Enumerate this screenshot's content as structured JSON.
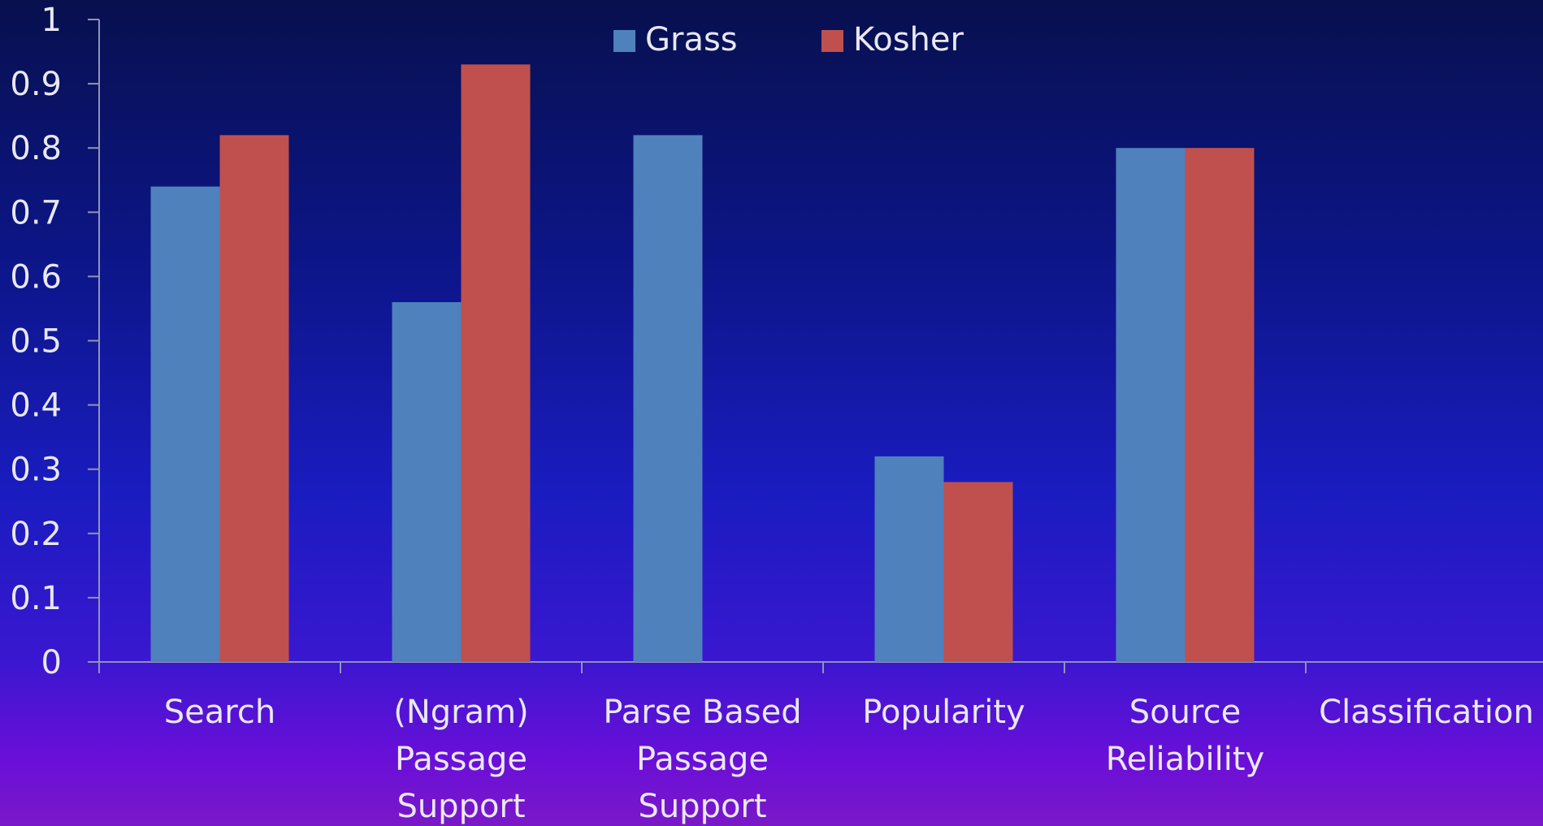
{
  "chart_data": {
    "type": "bar",
    "categories": [
      [
        "Search"
      ],
      [
        "(Ngram)",
        "Passage",
        "Support"
      ],
      [
        "Parse Based",
        "Passage",
        "Support"
      ],
      [
        "Popularity"
      ],
      [
        "Source",
        "Reliability"
      ],
      [
        "Classification"
      ]
    ],
    "series": [
      {
        "name": "Grass",
        "color": "#4f81bd",
        "values": [
          0.74,
          0.56,
          0.82,
          0.32,
          0.8,
          null
        ]
      },
      {
        "name": "Kosher",
        "color": "#c0504d",
        "values": [
          0.82,
          0.93,
          null,
          0.28,
          0.8,
          null
        ]
      }
    ],
    "ylim": [
      0,
      1
    ],
    "yticks": [
      "0",
      "0.1",
      "0.2",
      "0.3",
      "0.4",
      "0.5",
      "0.6",
      "0.7",
      "0.8",
      "0.9",
      "1"
    ],
    "legend": "top-center",
    "grid": false
  }
}
